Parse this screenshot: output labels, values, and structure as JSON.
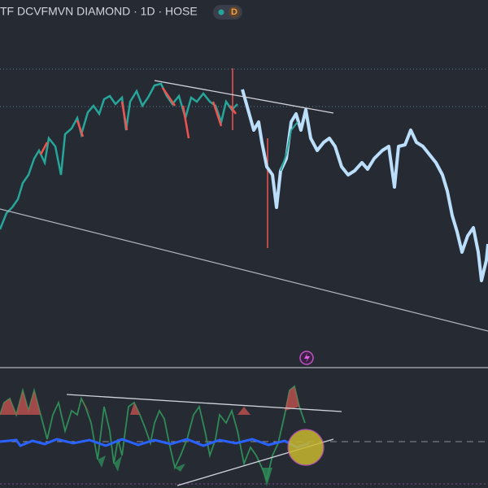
{
  "header": {
    "title": "TF DCVFMVN DIAMOND · 1D · HOSE",
    "badge": "D"
  }
}
